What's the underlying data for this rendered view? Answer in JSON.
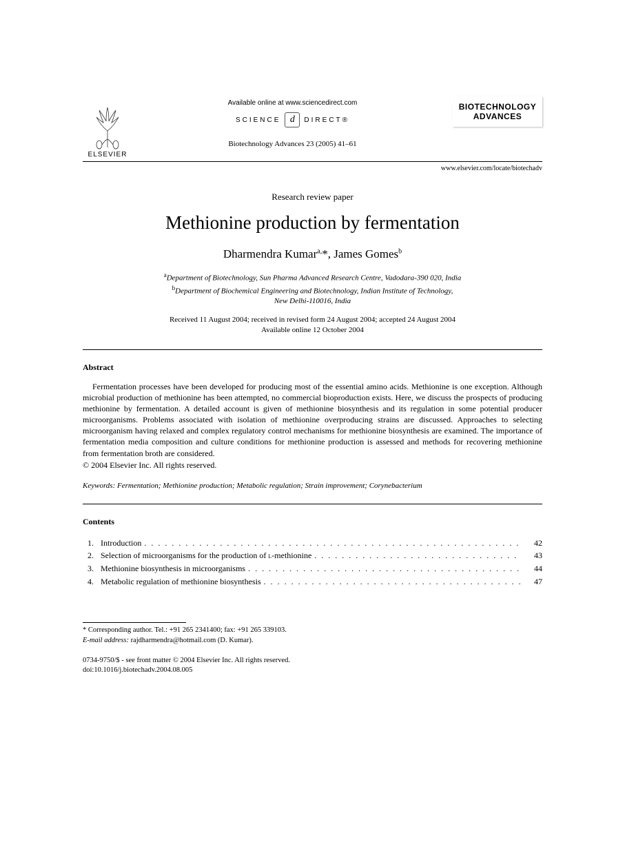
{
  "header": {
    "publisher": "ELSEVIER",
    "available_online": "Available online at www.sciencedirect.com",
    "science_direct_left": "SCIENCE",
    "science_direct_right": "DIRECT®",
    "sd_logo_glyph": "d",
    "citation": "Biotechnology Advances 23 (2005) 41–61",
    "journal_name_line1": "BIOTECHNOLOGY",
    "journal_name_line2": "ADVANCES",
    "journal_url": "www.elsevier.com/locate/biotechadv"
  },
  "paper_type": "Research review paper",
  "title": "Methionine production by fermentation",
  "authors_html": "Dharmendra Kumar<sup>a,</sup>*, James Gomes<sup>b</sup>",
  "affiliations": [
    "<sup>a</sup>Department of Biotechnology, Sun Pharma Advanced Research Centre, Vadodara-390 020, India",
    "<sup>b</sup>Department of Biochemical Engineering and Biotechnology, Indian Institute of Technology,",
    "New Delhi-110016, India"
  ],
  "dates_line1": "Received 11 August 2004; received in revised form 24 August 2004; accepted 24 August 2004",
  "dates_line2": "Available online 12 October 2004",
  "abstract": {
    "heading": "Abstract",
    "body": "Fermentation processes have been developed for producing most of the essential amino acids. Methionine is one exception. Although microbial production of methionine has been attempted, no commercial bioproduction exists. Here, we discuss the prospects of producing methionine by fermentation. A detailed account is given of methionine biosynthesis and its regulation in some potential producer microorganisms. Problems associated with isolation of methionine overproducing strains are discussed. Approaches to selecting microorganism having relaxed and complex regulatory control mechanisms for methionine biosynthesis are examined. The importance of fermentation media composition and culture conditions for methionine production is assessed and methods for recovering methionine from fermentation broth are considered.",
    "copyright": "© 2004 Elsevier Inc. All rights reserved."
  },
  "keywords": {
    "label": "Keywords:",
    "text": " Fermentation; Methionine production; Metabolic regulation; Strain improvement; Corynebacterium"
  },
  "contents": {
    "heading": "Contents",
    "items": [
      {
        "num": "1.",
        "title": "Introduction",
        "page": "42"
      },
      {
        "num": "2.",
        "title_html": "Selection of microorganisms for the production of <span class=\"smallcaps\">l</span>-methionine",
        "page": "43"
      },
      {
        "num": "3.",
        "title": "Methionine biosynthesis in microorganisms",
        "page": "44"
      },
      {
        "num": "4.",
        "title": "Metabolic regulation of methionine biosynthesis",
        "page": "47"
      }
    ]
  },
  "footnote": {
    "corr": "* Corresponding author. Tel.: +91 265 2341400; fax: +91 265 339103.",
    "email_label": "E-mail address:",
    "email_value": " rajdharmendra@hotmail.com (D. Kumar)."
  },
  "footer": {
    "line1": "0734-9750/$ - see front matter © 2004 Elsevier Inc. All rights reserved.",
    "line2": "doi:10.1016/j.biotechadv.2004.08.005"
  },
  "dots": ". . . . . . . . . . . . . . . . . . . . . . . . . . . . . . . . . . . . . . . . . . . . . . . . . . . . . . . . . . . ."
}
